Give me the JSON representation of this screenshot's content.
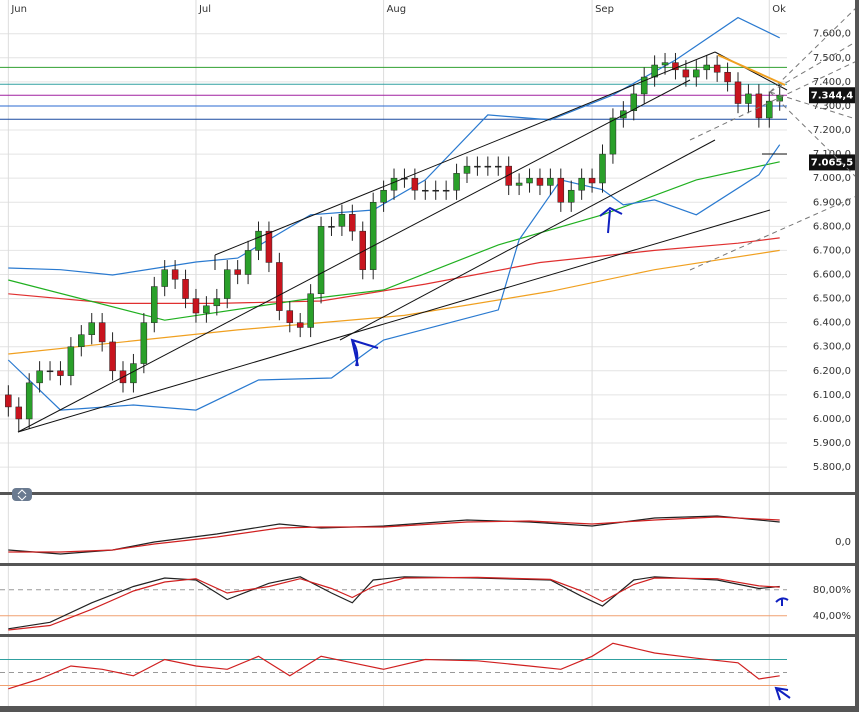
{
  "chart_data": [
    {
      "type": "candlestick",
      "xticks": [
        {
          "value": 0,
          "label": "Jun"
        },
        {
          "value": 18,
          "label": "Jul"
        },
        {
          "value": 36,
          "label": "Aug"
        },
        {
          "value": 56,
          "label": "Sep"
        },
        {
          "value": 73,
          "label": "Ok"
        }
      ],
      "xlim": [
        -0.8,
        74.7
      ],
      "ylim": [
        5705,
        7740
      ],
      "yticks": [
        {
          "value": 7600,
          "label": "7.600,0"
        },
        {
          "value": 7500,
          "label": "7.500,0"
        },
        {
          "value": 7400,
          "label": "7.400,0"
        },
        {
          "value": 7300,
          "label": "7.300,0"
        },
        {
          "value": 7200,
          "label": "7.200,0"
        },
        {
          "value": 7100,
          "label": "7.100,0"
        },
        {
          "value": 7000,
          "label": "7.000,0"
        },
        {
          "value": 6900,
          "label": "6.900,0"
        },
        {
          "value": 6800,
          "label": "6.800,0"
        },
        {
          "value": 6700,
          "label": "6.700,0"
        },
        {
          "value": 6600,
          "label": "6.600,0"
        },
        {
          "value": 6500,
          "label": "6.500,0"
        },
        {
          "value": 6400,
          "label": "6.400,0"
        },
        {
          "value": 6300,
          "label": "6.300,0"
        },
        {
          "value": 6200,
          "label": "6.200,0"
        },
        {
          "value": 6100,
          "label": "6.100,0"
        },
        {
          "value": 6000,
          "label": "6.000,0"
        },
        {
          "value": 5900,
          "label": "5.900,0"
        },
        {
          "value": 5800,
          "label": "5.800,0"
        }
      ],
      "grid": true,
      "up_color": "#2aa02a",
      "down_color": "#c8141e",
      "open": [
        6100,
        6050,
        6000,
        6150,
        6200,
        6200,
        6180,
        6300,
        6350,
        6400,
        6320,
        6200,
        6150,
        6230,
        6400,
        6550,
        6620,
        6580,
        6500,
        6440,
        6470,
        6500,
        6620,
        6600,
        6700,
        6780,
        6650,
        6450,
        6400,
        6380,
        6520,
        6800,
        6800,
        6850,
        6780,
        6620,
        6900,
        6950,
        7000,
        7000,
        6950,
        6950,
        6950,
        6950,
        7020,
        7050,
        7050,
        7050,
        7050,
        6970,
        6980,
        7000,
        6970,
        7000,
        6900,
        6950,
        7000,
        6980,
        7100,
        7250,
        7280,
        7350,
        7420,
        7470,
        7480,
        7450,
        7420,
        7450,
        7470,
        7440,
        7400,
        7310,
        7350,
        7250,
        7320
      ],
      "high": [
        6140,
        6090,
        6190,
        6240,
        6240,
        6240,
        6340,
        6390,
        6440,
        6440,
        6360,
        6240,
        6270,
        6440,
        6590,
        6660,
        6660,
        6620,
        6540,
        6510,
        6540,
        6660,
        6660,
        6740,
        6820,
        6820,
        6690,
        6490,
        6440,
        6560,
        6840,
        6840,
        6890,
        6890,
        6820,
        6940,
        6990,
        7040,
        7040,
        7040,
        6990,
        6990,
        6990,
        7060,
        7090,
        7090,
        7090,
        7090,
        7090,
        7020,
        7040,
        7040,
        7040,
        7040,
        6990,
        7040,
        7040,
        7140,
        7290,
        7320,
        7390,
        7460,
        7510,
        7520,
        7520,
        7490,
        7490,
        7510,
        7510,
        7480,
        7440,
        7390,
        7390,
        7360,
        7390
      ],
      "low": [
        6010,
        5950,
        5960,
        6110,
        6160,
        6140,
        6140,
        6260,
        6310,
        6280,
        6160,
        6110,
        6110,
        6190,
        6360,
        6510,
        6540,
        6460,
        6400,
        6400,
        6430,
        6460,
        6560,
        6560,
        6660,
        6610,
        6410,
        6360,
        6340,
        6340,
        6480,
        6760,
        6760,
        6740,
        6580,
        6580,
        6860,
        6910,
        6960,
        6910,
        6910,
        6910,
        6910,
        6910,
        6980,
        7010,
        7010,
        7010,
        6930,
        6930,
        6940,
        6930,
        6930,
        6860,
        6860,
        6910,
        6940,
        6940,
        7060,
        7210,
        7240,
        7310,
        7380,
        7430,
        7410,
        7380,
        7380,
        7410,
        7400,
        7360,
        7270,
        7270,
        7210,
        7210,
        7280
      ],
      "close": [
        6050,
        6000,
        6150,
        6200,
        6200,
        6180,
        6300,
        6350,
        6400,
        6320,
        6200,
        6150,
        6230,
        6400,
        6550,
        6620,
        6580,
        6500,
        6440,
        6470,
        6500,
        6620,
        6600,
        6700,
        6780,
        6650,
        6450,
        6400,
        6380,
        6520,
        6800,
        6800,
        6850,
        6780,
        6620,
        6900,
        6950,
        7000,
        7000,
        6950,
        6950,
        6950,
        6950,
        7020,
        7050,
        7050,
        7050,
        7050,
        6970,
        6980,
        7000,
        6970,
        7000,
        6900,
        6950,
        7000,
        6980,
        7100,
        7250,
        7280,
        7350,
        7420,
        7470,
        7480,
        7450,
        7420,
        7450,
        7470,
        7440,
        7400,
        7310,
        7350,
        7250,
        7320,
        7344.4
      ],
      "series": [
        {
          "color": "#e03030",
          "x": [
            0,
            10,
            20,
            30,
            40,
            51,
            62,
            70,
            74
          ],
          "values": [
            6520,
            6480,
            6480,
            6490,
            6560,
            6650,
            6700,
            6730,
            6752
          ]
        },
        {
          "color": "#f0a020",
          "x": [
            0,
            22,
            38,
            52,
            62,
            74
          ],
          "values": [
            6270,
            6370,
            6430,
            6530,
            6620,
            6700
          ]
        },
        {
          "color": "#20b020",
          "x": [
            0,
            15,
            28,
            36,
            47,
            57,
            66,
            74
          ],
          "values": [
            6577,
            6410,
            6494,
            6536,
            6723,
            6848,
            6993,
            7068
          ]
        },
        {
          "color": "#2a7ad0",
          "x": [
            0,
            5,
            10,
            18,
            22,
            29,
            35,
            40,
            46,
            52,
            58,
            64,
            70,
            74
          ],
          "values": [
            6627,
            6620,
            6598,
            6652,
            6668,
            6848,
            6868,
            6993,
            7263,
            7242,
            7346,
            7491,
            7667,
            7583
          ]
        },
        {
          "color": "#2a7ad0",
          "x": [
            0,
            5,
            12,
            18,
            24,
            31,
            36,
            47,
            49,
            53,
            57,
            59,
            62,
            66,
            72,
            74
          ],
          "values": [
            6245,
            6037,
            6058,
            6037,
            6162,
            6170,
            6328,
            6453,
            6744,
            6993,
            6952,
            6889,
            6910,
            6848,
            7014,
            7139
          ]
        }
      ],
      "levels": [
        {
          "value": 7460,
          "color": "#30a030"
        },
        {
          "value": 7390,
          "color": "#30a0a0"
        },
        {
          "value": 7344.4,
          "color": "#a020a0"
        },
        {
          "value": 7300,
          "color": "#2a6ad0"
        },
        {
          "value": 7245,
          "color": "#1a4aa0"
        }
      ],
      "price_tags": [
        {
          "value": 7344.4,
          "label": "7.344,4"
        },
        {
          "value": 7065.5,
          "label": "7.065,5"
        }
      ]
    },
    {
      "type": "line",
      "xlim": [
        -0.8,
        74.7
      ],
      "ylim": [
        -20,
        45
      ],
      "yticks": [
        {
          "value": 0,
          "label": "0,0"
        }
      ],
      "series": [
        {
          "color": "#222222",
          "x": [
            0,
            5,
            10,
            14,
            20,
            26,
            30,
            36,
            44,
            50,
            56,
            62,
            68,
            74
          ],
          "values": [
            -8,
            -12,
            -8,
            0,
            8,
            18,
            14,
            16,
            22,
            20,
            16,
            24,
            26,
            20
          ]
        },
        {
          "color": "#d02020",
          "x": [
            0,
            5,
            10,
            14,
            20,
            26,
            30,
            36,
            44,
            50,
            56,
            62,
            68,
            74
          ],
          "values": [
            -10,
            -10,
            -8,
            -2,
            5,
            14,
            15,
            15,
            20,
            21,
            18,
            22,
            25,
            22
          ]
        }
      ],
      "levels": []
    },
    {
      "type": "line",
      "xlim": [
        -0.8,
        74.7
      ],
      "ylim": [
        15,
        115
      ],
      "yticks": [
        {
          "value": 80,
          "label": "80,00%"
        },
        {
          "value": 40,
          "label": "40,00%"
        }
      ],
      "series": [
        {
          "color": "#222222",
          "x": [
            0,
            4,
            8,
            12,
            15,
            18,
            21,
            25,
            28,
            31,
            33,
            35,
            38,
            45,
            52,
            55,
            57,
            60,
            62,
            68,
            72,
            74
          ],
          "values": [
            20,
            30,
            60,
            85,
            98,
            95,
            65,
            90,
            100,
            75,
            60,
            95,
            100,
            98,
            95,
            70,
            55,
            95,
            100,
            95,
            82,
            85
          ]
        },
        {
          "color": "#d02020",
          "x": [
            0,
            4,
            8,
            12,
            15,
            18,
            21,
            25,
            28,
            31,
            33,
            35,
            38,
            45,
            52,
            55,
            57,
            60,
            62,
            68,
            72,
            74
          ],
          "values": [
            18,
            25,
            50,
            78,
            92,
            97,
            75,
            85,
            97,
            82,
            68,
            85,
            98,
            99,
            96,
            78,
            62,
            88,
            98,
            97,
            86,
            84
          ]
        }
      ],
      "levels": [
        {
          "value": 80,
          "color": "#999999"
        },
        {
          "value": 40,
          "color": "#f0a070"
        }
      ]
    },
    {
      "type": "line",
      "xlim": [
        -0.8,
        74.7
      ],
      "ylim": [
        0,
        100
      ],
      "yticks": [],
      "series": [
        {
          "color": "#d02020",
          "x": [
            0,
            3,
            6,
            9,
            12,
            15,
            18,
            21,
            24,
            27,
            30,
            33,
            36,
            40,
            45,
            50,
            53,
            56,
            58,
            62,
            66,
            70,
            72,
            74
          ],
          "values": [
            25,
            40,
            60,
            55,
            45,
            70,
            60,
            55,
            75,
            45,
            75,
            65,
            55,
            70,
            68,
            60,
            55,
            75,
            95,
            80,
            72,
            65,
            40,
            45
          ]
        }
      ],
      "levels": [
        {
          "value": 70,
          "color": "#30a0a0"
        },
        {
          "value": 50,
          "color": "#999999"
        },
        {
          "value": 30,
          "color": "#f0a070"
        }
      ]
    }
  ]
}
